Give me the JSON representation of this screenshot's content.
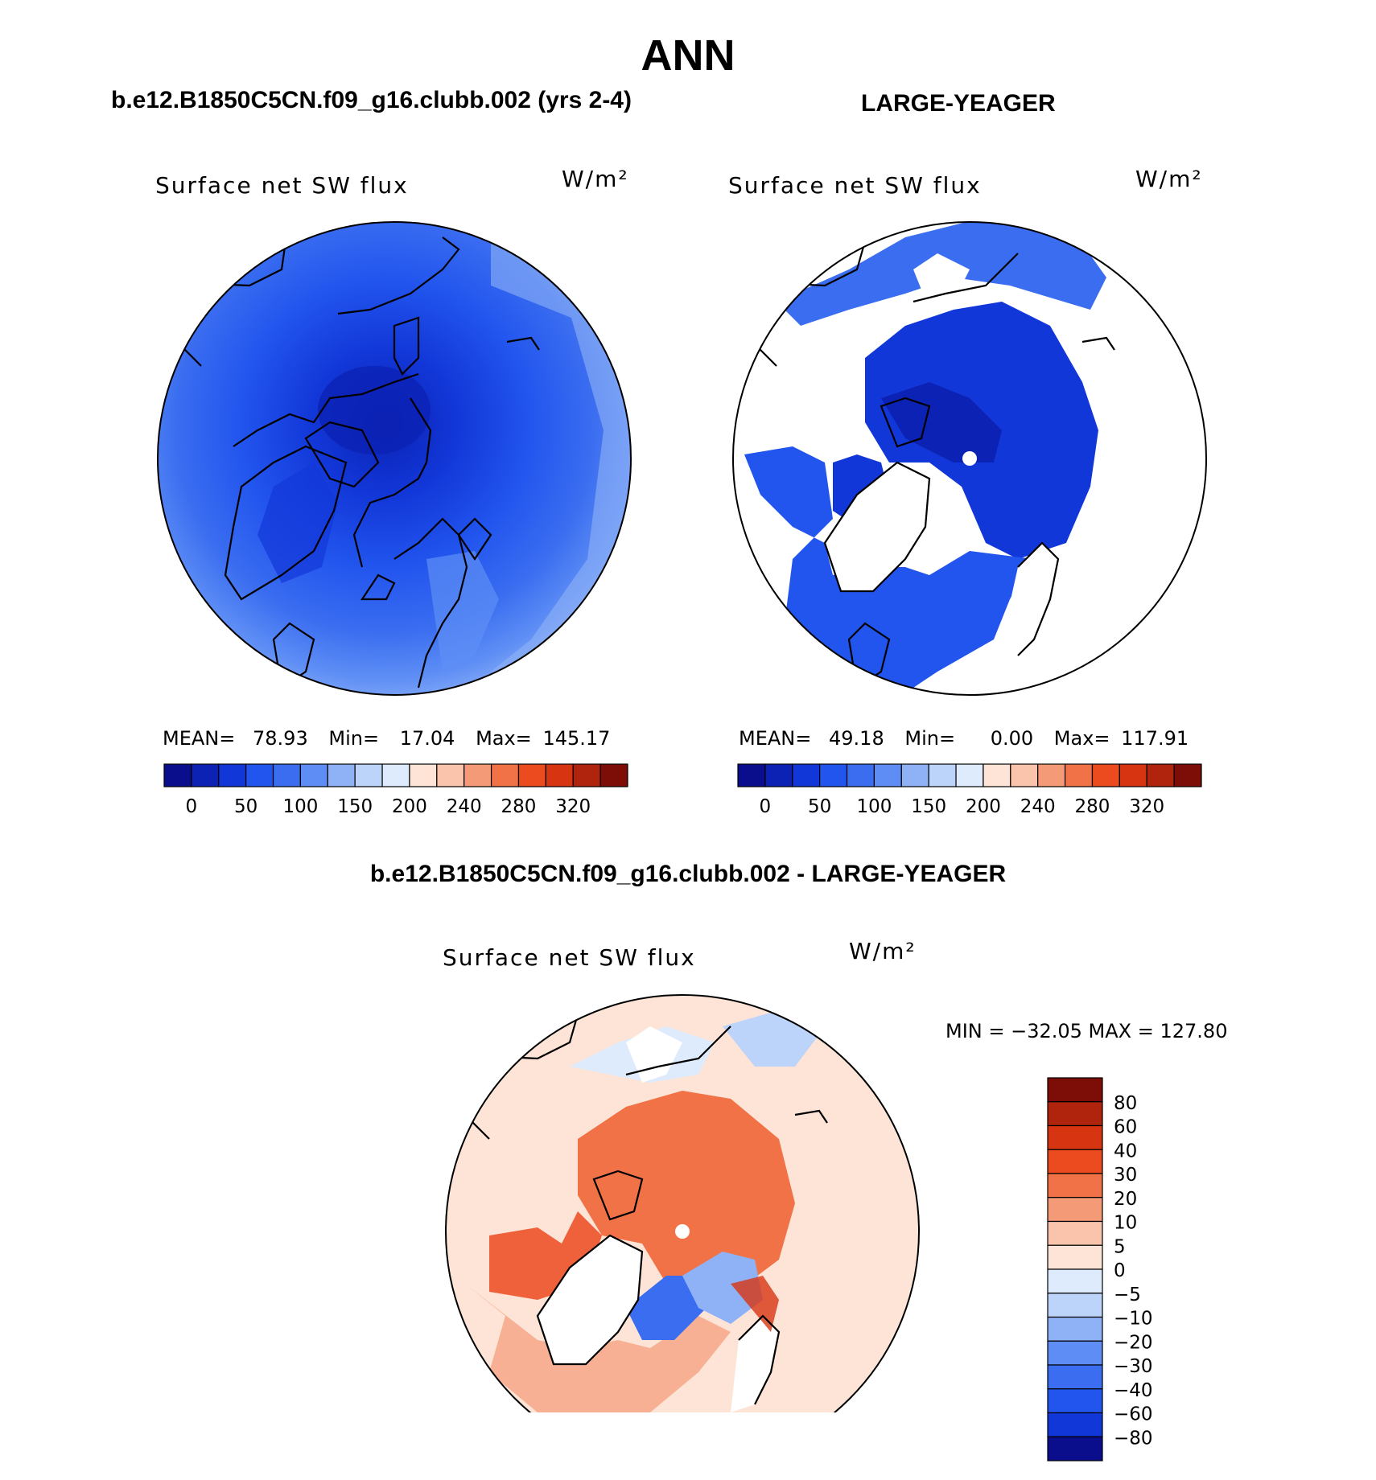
{
  "figure": {
    "season_title": "ANN",
    "panel1": {
      "case_title": "b.e12.B1850C5CN.f09_g16.clubb.002 (yrs 2-4)",
      "variable": "Surface net SW flux",
      "units": "W/m²",
      "stats": {
        "mean_label": "MEAN=",
        "mean": "78.93",
        "min_label": "Min=",
        "min": "17.04",
        "max_label": "Max=",
        "max": "145.17"
      }
    },
    "panel2": {
      "case_title": "LARGE-YEAGER",
      "variable": "Surface net SW flux",
      "units": "W/m²",
      "stats": {
        "mean_label": "MEAN=",
        "mean": "49.18",
        "min_label": "Min=",
        "min": "0.00",
        "max_label": "Max=",
        "max": "117.91"
      }
    },
    "panel3": {
      "case_title": "b.e12.B1850C5CN.f09_g16.clubb.002 - LARGE-YEAGER",
      "variable": "Surface net SW flux",
      "units": "W/m²",
      "minmax": "MIN = −32.05 MAX = 127.80"
    }
  },
  "colorbar_abs": {
    "tick_labels": [
      "0",
      "50",
      "100",
      "150",
      "200",
      "240",
      "280",
      "320"
    ],
    "colors": [
      "#0a0e8c",
      "#0b22b4",
      "#1237d8",
      "#2255ee",
      "#3a6df0",
      "#5e8ef5",
      "#8fb2f7",
      "#bcd3fa",
      "#deebfc",
      "#fde4d6",
      "#f9c4ab",
      "#f49a76",
      "#f07246",
      "#ec4a1f",
      "#d73512",
      "#b0230c",
      "#7c0d07"
    ]
  },
  "colorbar_diff": {
    "tick_labels": [
      "80",
      "60",
      "40",
      "30",
      "20",
      "10",
      "5",
      "0",
      "−5",
      "−10",
      "−20",
      "−30",
      "−40",
      "−60",
      "−80"
    ],
    "colors": [
      "#7c0d07",
      "#b0230c",
      "#d73512",
      "#ec4a1f",
      "#f07246",
      "#f49a76",
      "#f9c4ab",
      "#fde4d6",
      "#deebfc",
      "#bcd3fa",
      "#8fb2f7",
      "#5e8ef5",
      "#3a6df0",
      "#2255ee",
      "#1237d8",
      "#0a0e8c"
    ]
  }
}
